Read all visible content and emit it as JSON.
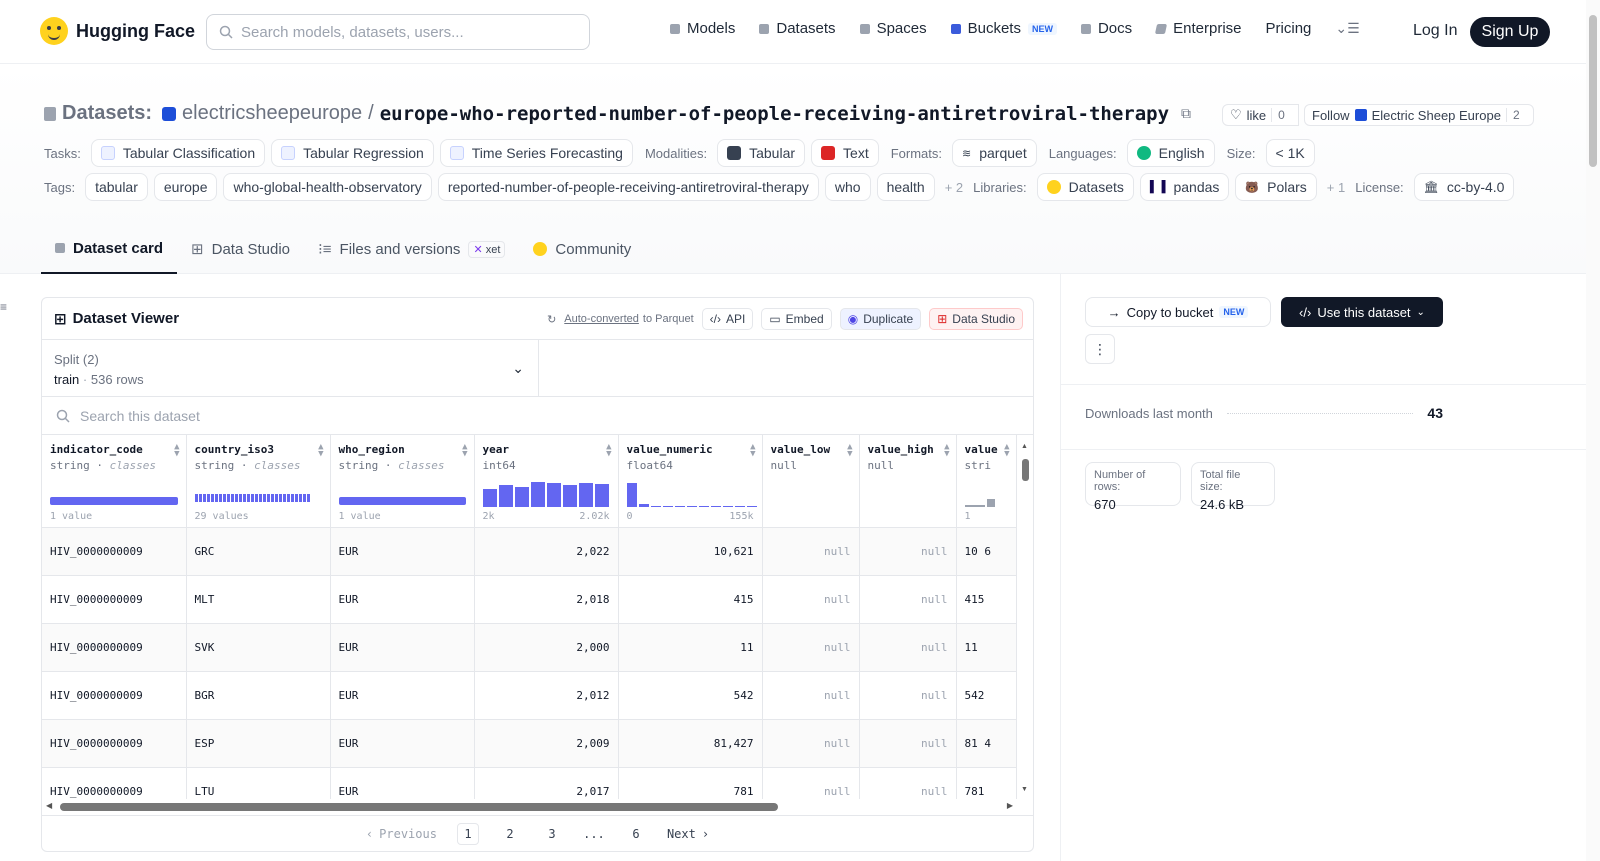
{
  "nav": {
    "brand": "Hugging Face",
    "search_placeholder": "Search models, datasets, users...",
    "links": [
      {
        "label": "Models",
        "icon": "cube-icon"
      },
      {
        "label": "Datasets",
        "icon": "database-icon"
      },
      {
        "label": "Spaces",
        "icon": "grid-icon"
      },
      {
        "label": "Buckets",
        "icon": "bucket-icon",
        "badge": "NEW"
      },
      {
        "label": "Docs",
        "icon": "book-icon"
      },
      {
        "label": "Enterprise",
        "icon": "enterprise-icon"
      },
      {
        "label": "Pricing"
      }
    ],
    "login": "Log In",
    "signup": "Sign Up"
  },
  "header": {
    "section_label": "Datasets:",
    "owner": "electricsheepeurope",
    "separator": "/",
    "repo": "europe-who-reported-number-of-people-receiving-antiretroviral-therapy",
    "like_label": "like",
    "like_count": "0",
    "follow_label": "Follow",
    "follow_org": "Electric Sheep Europe",
    "follow_count": "2"
  },
  "tags_row1": {
    "tasks_label": "Tasks:",
    "tasks": [
      "Tabular Classification",
      "Tabular Regression",
      "Time Series Forecasting"
    ],
    "modalities_label": "Modalities:",
    "modalities": [
      "Tabular",
      "Text"
    ],
    "formats_label": "Formats:",
    "formats": [
      "parquet"
    ],
    "languages_label": "Languages:",
    "languages": [
      "English"
    ],
    "size_label": "Size:",
    "size": "< 1K"
  },
  "tags_row2": {
    "tags_label": "Tags:",
    "tags": [
      "tabular",
      "europe",
      "who-global-health-observatory",
      "reported-number-of-people-receiving-antiretroviral-therapy",
      "who",
      "health"
    ],
    "tags_more": "+ 2",
    "libraries_label": "Libraries:",
    "libraries": [
      "Datasets",
      "pandas",
      "Polars"
    ],
    "libraries_more": "+ 1",
    "license_label": "License:",
    "license": "cc-by-4.0"
  },
  "tabs": [
    {
      "label": "Dataset card",
      "active": true
    },
    {
      "label": "Data Studio"
    },
    {
      "label": "Files and versions",
      "badge": "xet"
    },
    {
      "label": "Community"
    }
  ],
  "viewer": {
    "title": "Dataset Viewer",
    "auto_converted": "Auto-converted",
    "to_parquet": "to Parquet",
    "tools": [
      "API",
      "Embed",
      "Duplicate",
      "Data Studio"
    ],
    "split_label": "Split (2)",
    "split_name": "train",
    "split_rows": "536 rows",
    "search_placeholder": "Search this dataset",
    "columns": [
      {
        "name": "indicator_code",
        "type": "string",
        "kind": "classes",
        "foot_left": "1 value",
        "foot_right": ""
      },
      {
        "name": "country_iso3",
        "type": "string",
        "kind": "classes",
        "foot_left": "29 values",
        "foot_right": ""
      },
      {
        "name": "who_region",
        "type": "string",
        "kind": "classes",
        "foot_left": "1 value",
        "foot_right": ""
      },
      {
        "name": "year",
        "type": "int64",
        "kind": "",
        "foot_left": "2k",
        "foot_right": "2.02k"
      },
      {
        "name": "value_numeric",
        "type": "float64",
        "kind": "",
        "foot_left": "0",
        "foot_right": "155k"
      },
      {
        "name": "value_low",
        "type": "null",
        "kind": "",
        "foot_left": "",
        "foot_right": ""
      },
      {
        "name": "value_high",
        "type": "null",
        "kind": "",
        "foot_left": "",
        "foot_right": ""
      },
      {
        "name": "value",
        "type": "stri",
        "kind": "",
        "foot_left": "1",
        "foot_right": ""
      }
    ],
    "rows": [
      [
        "HIV_0000000009",
        "GRC",
        "EUR",
        "2,022",
        "10,621",
        "null",
        "null",
        "10 6"
      ],
      [
        "HIV_0000000009",
        "MLT",
        "EUR",
        "2,018",
        "415",
        "null",
        "null",
        "415"
      ],
      [
        "HIV_0000000009",
        "SVK",
        "EUR",
        "2,000",
        "11",
        "null",
        "null",
        "11"
      ],
      [
        "HIV_0000000009",
        "BGR",
        "EUR",
        "2,012",
        "542",
        "null",
        "null",
        "542"
      ],
      [
        "HIV_0000000009",
        "ESP",
        "EUR",
        "2,009",
        "81,427",
        "null",
        "null",
        "81 4"
      ],
      [
        "HIV_0000000009",
        "LTU",
        "EUR",
        "2,017",
        "781",
        "null",
        "null",
        "781"
      ]
    ],
    "pager": {
      "prev": "Previous",
      "pages": [
        "1",
        "2",
        "3",
        "...",
        "6"
      ],
      "next": "Next",
      "current": "1"
    }
  },
  "sidebar": {
    "copy_label": "Copy to bucket",
    "copy_badge": "NEW",
    "use_label": "Use this dataset",
    "downloads_label": "Downloads last month",
    "downloads_value": "43",
    "rows_label": "Number of rows:",
    "rows_value": "670",
    "size_label": "Total file size:",
    "size_value": "24.6 kB"
  }
}
